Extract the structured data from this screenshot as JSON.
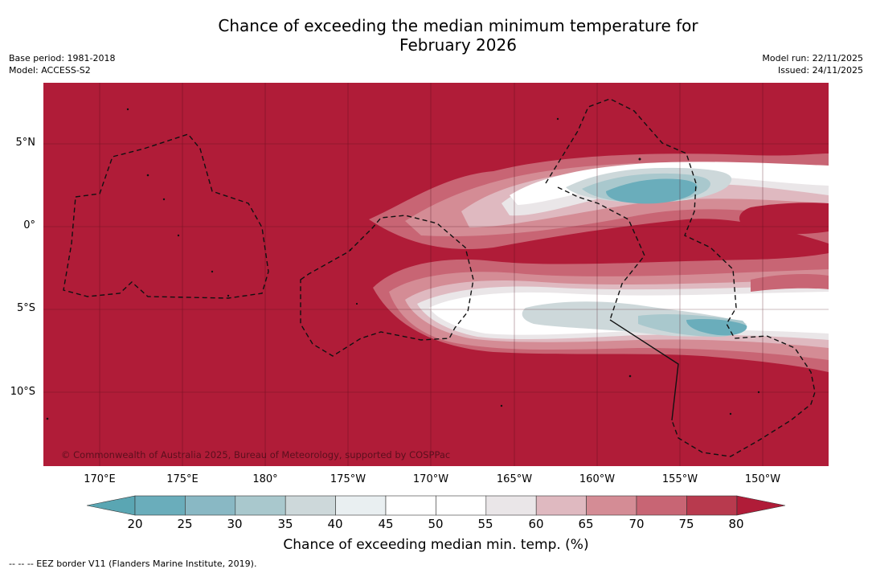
{
  "header": {
    "title_line1": "Chance of exceeding the median minimum temperature for",
    "title_line2": "February 2026",
    "base_period": "Base period: 1981-2018",
    "model": "Model: ACCESS-S2",
    "model_run": "Model run: 22/11/2025",
    "issued": "Issued: 24/11/2025"
  },
  "map": {
    "copyright": "© Commonwealth of Australia 2025, Bureau of Meteorology, supported by COSPPac",
    "lat_labels": [
      "5°N",
      "0°",
      "5°S",
      "10°S"
    ],
    "lon_labels": [
      "170°E",
      "175°E",
      "180°",
      "175°W",
      "170°W",
      "165°W",
      "160°W",
      "155°W",
      "150°W"
    ],
    "background_color": "#b01c38"
  },
  "colorbar": {
    "ticks": [
      "20",
      "25",
      "30",
      "35",
      "40",
      "45",
      "50",
      "55",
      "60",
      "65",
      "70",
      "75",
      "80"
    ],
    "colors": [
      "#5aa6b3",
      "#6aadbb",
      "#89b8c4",
      "#a9c8cd",
      "#cdd8da",
      "#e9eff1",
      "#ffffff",
      "#ffffff",
      "#eae6e8",
      "#dfb9c0",
      "#d48c95",
      "#c86574",
      "#b83a4e",
      "#b01c38"
    ],
    "label": "Chance of exceeding median min. temp. (%)"
  },
  "footnote": "--  --  -- EEZ border V11 (Flanders Marine Institute, 2019)."
}
